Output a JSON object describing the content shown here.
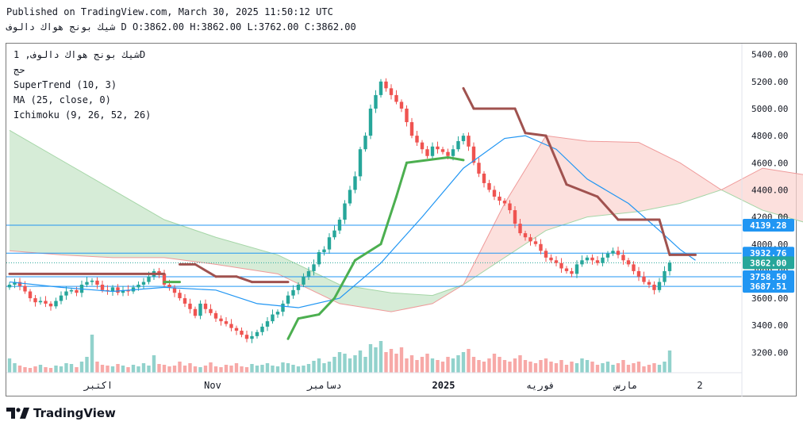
{
  "header": {
    "published": "Published on TradingView.com, March 30, 2025 11:50:12 UTC",
    "symbol_line": "شيك بونج هواك دالوف D O:3862.00 H:3862.00 L:3762.00 C:3862.00"
  },
  "legend": {
    "symbol": "شيك بونج هواك دالوف, 1D",
    "vol": "حج",
    "supertrend": "SuperTrend (10, 3)",
    "ma": "MA (25, close, 0)",
    "ichimoku": "Ichimoku (9, 26, 52, 26)"
  },
  "branding": "TradingView",
  "colors": {
    "up": "#26a69a",
    "down": "#ef5350",
    "supertrend_up": "#4caf50",
    "supertrend_down": "#a0524f",
    "ma": "#2196f3",
    "cloud_bull": "#c8e6c9",
    "cloud_bear": "#fbd5d2",
    "price_label": "#2196f3",
    "last_price": "#26a69a"
  },
  "chart_data": {
    "type": "candlestick",
    "y_axis": {
      "ylim": [
        3050,
        5480
      ],
      "ticks": [
        3200,
        3400,
        3600,
        3800,
        4000,
        4200,
        4400,
        4600,
        4800,
        5000,
        5200,
        5400
      ],
      "tick_labels": [
        "3200.00",
        "3400.00",
        "3600.00",
        "3800.00",
        "4000.00",
        "4200.00",
        "4400.00",
        "4600.00",
        "4800.00",
        "5000.00",
        "5200.00",
        "5400.00"
      ]
    },
    "x_axis": {
      "labels": [
        "اكتبر",
        "Nov",
        "دسامبر",
        "2025",
        "فوريه",
        "مارس",
        "2"
      ]
    },
    "price_labels": [
      {
        "value": 4139.28,
        "text": "4139.28",
        "kind": "level"
      },
      {
        "value": 3932.76,
        "text": "3932.76",
        "kind": "level"
      },
      {
        "value": 3862.0,
        "text": "3862.00",
        "kind": "last"
      },
      {
        "value": 3758.5,
        "text": "3758.50",
        "kind": "level"
      },
      {
        "value": 3687.51,
        "text": "3687.51",
        "kind": "level"
      }
    ],
    "close": [
      3700,
      3720,
      3690,
      3650,
      3600,
      3570,
      3580,
      3560,
      3540,
      3580,
      3620,
      3650,
      3660,
      3640,
      3700,
      3720,
      3730,
      3700,
      3660,
      3650,
      3680,
      3640,
      3660,
      3650,
      3680,
      3700,
      3720,
      3760,
      3800,
      3780,
      3700,
      3680,
      3640,
      3600,
      3560,
      3520,
      3470,
      3560,
      3520,
      3490,
      3450,
      3430,
      3410,
      3380,
      3360,
      3330,
      3300,
      3320,
      3350,
      3390,
      3430,
      3480,
      3500,
      3560,
      3620,
      3660,
      3700,
      3760,
      3800,
      3850,
      3940,
      3960,
      4050,
      4100,
      4180,
      4300,
      4400,
      4500,
      4700,
      4800,
      5000,
      5100,
      5200,
      5150,
      5100,
      5050,
      5000,
      4900,
      4800,
      4750,
      4700,
      4650,
      4720,
      4700,
      4680,
      4650,
      4700,
      4760,
      4800,
      4720,
      4600,
      4520,
      4450,
      4400,
      4350,
      4320,
      4300,
      4250,
      4150,
      4080,
      4050,
      4020,
      4000,
      3950,
      3900,
      3880,
      3860,
      3820,
      3800,
      3780,
      3850,
      3880,
      3900,
      3880,
      3860,
      3900,
      3930,
      3950,
      3920,
      3880,
      3850,
      3800,
      3760,
      3720,
      3700,
      3660,
      3720,
      3800,
      3862
    ],
    "volume": [
      18,
      12,
      9,
      7,
      6,
      8,
      10,
      7,
      6,
      9,
      8,
      12,
      11,
      7,
      14,
      20,
      48,
      14,
      10,
      9,
      8,
      11,
      9,
      7,
      10,
      8,
      12,
      9,
      22,
      11,
      10,
      8,
      9,
      14,
      9,
      12,
      8,
      7,
      9,
      13,
      8,
      7,
      10,
      9,
      12,
      8,
      7,
      11,
      9,
      10,
      12,
      9,
      8,
      13,
      12,
      10,
      8,
      9,
      11,
      15,
      18,
      12,
      14,
      20,
      26,
      24,
      18,
      22,
      28,
      20,
      36,
      32,
      40,
      26,
      30,
      24,
      32,
      18,
      22,
      16,
      20,
      24,
      18,
      16,
      14,
      20,
      18,
      22,
      26,
      30,
      20,
      16,
      14,
      18,
      24,
      20,
      16,
      14,
      18,
      22,
      16,
      14,
      12,
      16,
      18,
      14,
      12,
      16,
      10,
      14,
      12,
      18,
      16,
      14,
      10,
      12,
      14,
      10,
      12,
      16,
      10,
      12,
      14,
      8,
      10,
      12,
      10,
      14,
      28
    ],
    "supertrend": [
      {
        "i": 0,
        "v": 3780,
        "dir": "down"
      },
      {
        "i": 30,
        "v": 3780,
        "dir": "down"
      },
      {
        "i": 30,
        "v": 3720,
        "dir": "up"
      },
      {
        "i": 33,
        "v": 3720,
        "dir": "up"
      },
      {
        "i": 33,
        "v": 3850,
        "dir": "down"
      },
      {
        "i": 36,
        "v": 3850,
        "dir": "down"
      },
      {
        "i": 40,
        "v": 3760,
        "dir": "down"
      },
      {
        "i": 44,
        "v": 3760,
        "dir": "down"
      },
      {
        "i": 47,
        "v": 3720,
        "dir": "down"
      },
      {
        "i": 54,
        "v": 3720,
        "dir": "down"
      },
      {
        "i": 54,
        "v": 3300,
        "dir": "up"
      },
      {
        "i": 56,
        "v": 3450,
        "dir": "up"
      },
      {
        "i": 60,
        "v": 3480,
        "dir": "up"
      },
      {
        "i": 63,
        "v": 3600,
        "dir": "up"
      },
      {
        "i": 67,
        "v": 3880,
        "dir": "up"
      },
      {
        "i": 72,
        "v": 4000,
        "dir": "up"
      },
      {
        "i": 75,
        "v": 4350,
        "dir": "up"
      },
      {
        "i": 77,
        "v": 4600,
        "dir": "up"
      },
      {
        "i": 85,
        "v": 4640,
        "dir": "up"
      },
      {
        "i": 88,
        "v": 4620,
        "dir": "up"
      },
      {
        "i": 88,
        "v": 5150,
        "dir": "down"
      },
      {
        "i": 90,
        "v": 5000,
        "dir": "down"
      },
      {
        "i": 98,
        "v": 5000,
        "dir": "down"
      },
      {
        "i": 100,
        "v": 4820,
        "dir": "down"
      },
      {
        "i": 104,
        "v": 4800,
        "dir": "down"
      },
      {
        "i": 108,
        "v": 4440,
        "dir": "down"
      },
      {
        "i": 114,
        "v": 4350,
        "dir": "down"
      },
      {
        "i": 118,
        "v": 4180,
        "dir": "down"
      },
      {
        "i": 126,
        "v": 4180,
        "dir": "down"
      },
      {
        "i": 128,
        "v": 3920,
        "dir": "down"
      },
      {
        "i": 133,
        "v": 3920,
        "dir": "down"
      }
    ],
    "ma": [
      {
        "i": 0,
        "v": 3720
      },
      {
        "i": 10,
        "v": 3680
      },
      {
        "i": 20,
        "v": 3650
      },
      {
        "i": 30,
        "v": 3680
      },
      {
        "i": 40,
        "v": 3660
      },
      {
        "i": 48,
        "v": 3560
      },
      {
        "i": 56,
        "v": 3530
      },
      {
        "i": 64,
        "v": 3600
      },
      {
        "i": 72,
        "v": 3860
      },
      {
        "i": 80,
        "v": 4200
      },
      {
        "i": 88,
        "v": 4560
      },
      {
        "i": 96,
        "v": 4780
      },
      {
        "i": 100,
        "v": 4800
      },
      {
        "i": 106,
        "v": 4700
      },
      {
        "i": 112,
        "v": 4480
      },
      {
        "i": 120,
        "v": 4300
      },
      {
        "i": 126,
        "v": 4100
      },
      {
        "i": 130,
        "v": 3960
      },
      {
        "i": 133,
        "v": 3880
      }
    ],
    "cloud": [
      {
        "i": 0,
        "a": 4840,
        "b": 3950
      },
      {
        "i": 10,
        "a": 4620,
        "b": 3920
      },
      {
        "i": 20,
        "a": 4400,
        "b": 3900
      },
      {
        "i": 30,
        "a": 4180,
        "b": 3900
      },
      {
        "i": 40,
        "a": 4050,
        "b": 3850
      },
      {
        "i": 52,
        "a": 3920,
        "b": 3780
      },
      {
        "i": 64,
        "a": 3700,
        "b": 3560
      },
      {
        "i": 74,
        "a": 3640,
        "b": 3500
      },
      {
        "i": 82,
        "a": 3620,
        "b": 3560
      },
      {
        "i": 88,
        "a": 3700,
        "b": 3700
      },
      {
        "i": 96,
        "a": 3900,
        "b": 4300
      },
      {
        "i": 104,
        "a": 4100,
        "b": 4800
      },
      {
        "i": 112,
        "a": 4200,
        "b": 4760
      },
      {
        "i": 122,
        "a": 4240,
        "b": 4750
      },
      {
        "i": 130,
        "a": 4300,
        "b": 4600
      },
      {
        "i": 138,
        "a": 4400,
        "b": 4400
      },
      {
        "i": 146,
        "a": 4250,
        "b": 4560
      },
      {
        "i": 156,
        "a": 4140,
        "b": 4500
      }
    ]
  }
}
